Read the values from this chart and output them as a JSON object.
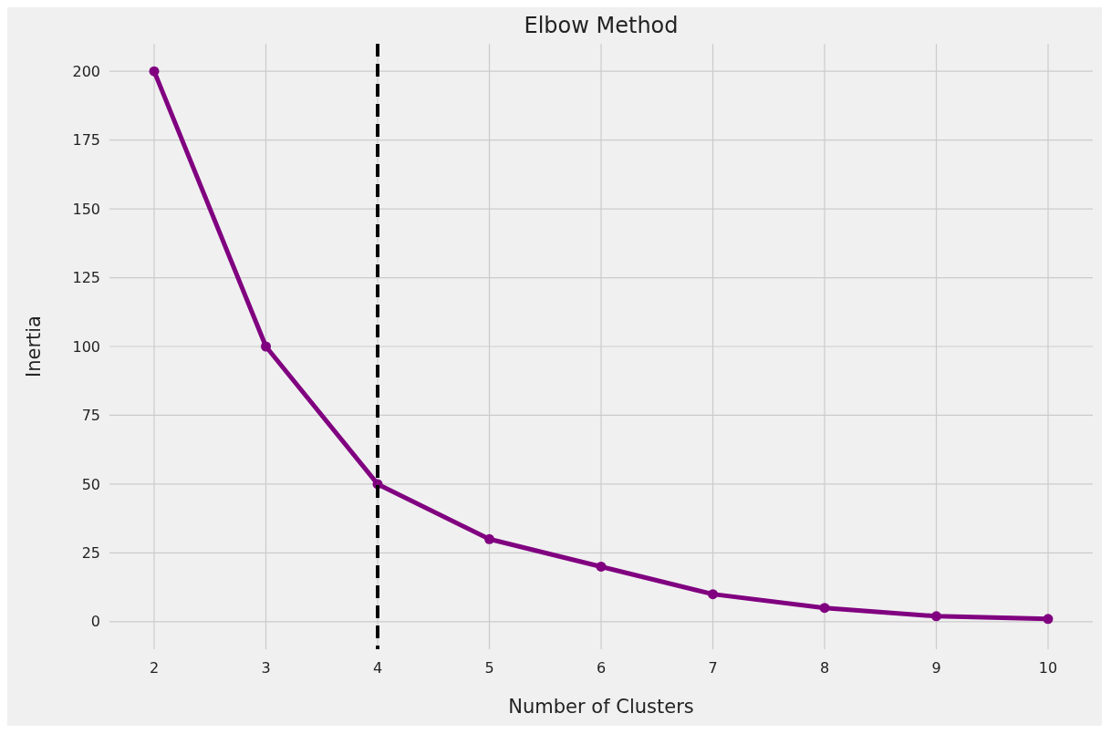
{
  "chart_data": {
    "type": "line",
    "title": "Elbow Method",
    "xlabel": "Number of Clusters",
    "ylabel": "Inertia",
    "x": [
      2,
      3,
      4,
      5,
      6,
      7,
      8,
      9,
      10
    ],
    "series": [
      {
        "color": "#800080",
        "values": [
          200,
          100,
          50,
          30,
          20,
          10,
          5,
          2,
          1
        ]
      }
    ],
    "xlim": [
      1.6,
      10.4
    ],
    "xticks": [
      2,
      3,
      4,
      5,
      6,
      7,
      8,
      9,
      10
    ],
    "ylim": [
      -10,
      210
    ],
    "yticks": [
      0,
      25,
      50,
      75,
      100,
      125,
      150,
      175,
      200
    ],
    "grid": true,
    "marker": "circle",
    "line_style": "solid",
    "ref_lines": [
      {
        "axis": "x",
        "value": 4,
        "color": "#000000",
        "line_style": "dashed"
      }
    ]
  }
}
